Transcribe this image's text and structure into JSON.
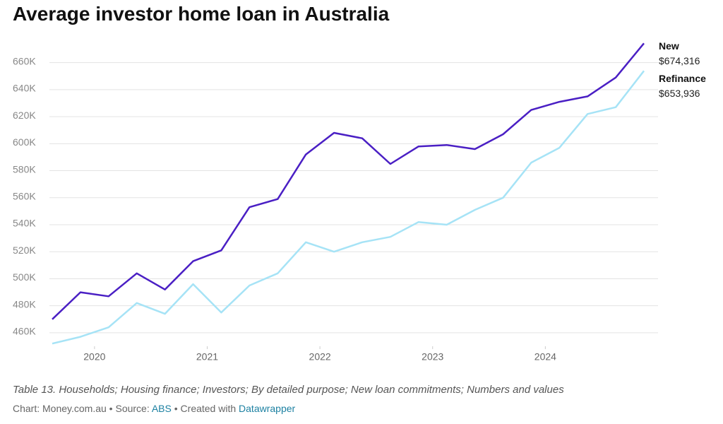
{
  "chart_data": {
    "type": "line",
    "title": "Average investor home loan in Australia",
    "note": "Table 13. Households; Housing finance; Investors; By detailed purpose; New loan commitments; Numbers and values",
    "credit": {
      "chart": "Chart: Money.com.au • Source: ",
      "source": "ABS",
      "created": " • Created with ",
      "tool": "Datawrapper"
    },
    "x": [
      2019.625,
      2019.875,
      2020.125,
      2020.375,
      2020.625,
      2020.875,
      2021.125,
      2021.375,
      2021.625,
      2021.875,
      2022.125,
      2022.375,
      2022.625,
      2022.875,
      2023.125,
      2023.375,
      2023.625,
      2023.875,
      2024.125,
      2024.375,
      2024.625,
      2024.875
    ],
    "xlim": [
      2019.6,
      2025
    ],
    "xticks": [
      2020,
      2021,
      2022,
      2023,
      2024
    ],
    "ylim": [
      450,
      675
    ],
    "yticks": [
      {
        "value": 460,
        "label": "460K"
      },
      {
        "value": 480,
        "label": "480K"
      },
      {
        "value": 500,
        "label": "500K"
      },
      {
        "value": 520,
        "label": "520K"
      },
      {
        "value": 540,
        "label": "540K"
      },
      {
        "value": 560,
        "label": "560K"
      },
      {
        "value": 580,
        "label": "580K"
      },
      {
        "value": 600,
        "label": "600K"
      },
      {
        "value": 620,
        "label": "620K"
      },
      {
        "value": 640,
        "label": "640K"
      },
      {
        "value": 660,
        "label": "660K"
      }
    ],
    "grid": true,
    "series": [
      {
        "name": "New",
        "color": "#4a1fc4",
        "values": [
          470,
          490,
          487,
          504,
          492,
          513,
          521,
          553,
          559,
          592,
          608,
          604,
          585,
          598,
          599,
          596,
          607,
          625,
          631,
          635,
          649,
          674.316
        ],
        "value_labels": [
          null,
          null,
          null,
          null,
          null,
          null,
          null,
          null,
          null,
          null,
          null,
          null,
          null,
          null,
          null,
          null,
          null,
          null,
          null,
          null,
          null,
          "$674,316"
        ]
      },
      {
        "name": "Refinance",
        "color": "#a6e3f6",
        "values": [
          452,
          457,
          464,
          482,
          474,
          496,
          475,
          495,
          504,
          527,
          520,
          527,
          531,
          542,
          540,
          551,
          560,
          586,
          597,
          622,
          627,
          653.936
        ],
        "value_labels": [
          null,
          null,
          null,
          null,
          null,
          null,
          null,
          null,
          null,
          null,
          null,
          null,
          null,
          null,
          null,
          null,
          null,
          null,
          null,
          null,
          null,
          "$653,936"
        ]
      }
    ]
  }
}
